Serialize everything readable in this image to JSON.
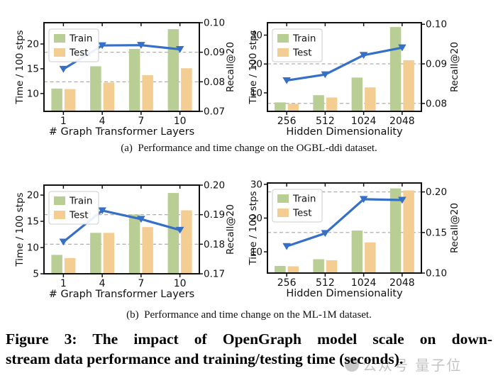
{
  "figure": {
    "subcaption_a": "(a)  Performance and time change on the OGBL-ddi dataset.",
    "subcaption_b": "(b)  Performance and time change on the ML-1M dataset.",
    "caption_lines": [
      "Figure 3: The impact of OpenGraph model scale on down-",
      "stream data performance and training/testing time (seconds)."
    ]
  },
  "legend": {
    "train_label": "Train",
    "test_label": "Test"
  },
  "colors": {
    "train_bar": "#b8ce94",
    "test_bar": "#f4cd92",
    "line": "#3570c6",
    "grid": "#a6a6a6",
    "spine": "#111111",
    "legend_border": "#cccccc"
  },
  "watermark": {
    "icon": "circle-logo",
    "text": "公众号 量子位"
  },
  "chart_data": [
    {
      "type": "bar",
      "title": "",
      "xlabel": "# Graph Transformer Layers",
      "ylabel_left": "Time / 100 stps",
      "ylabel_right": "Recall@20",
      "categories": [
        "1",
        "4",
        "7",
        "10"
      ],
      "series": [
        {
          "name": "Train",
          "type": "bar",
          "axis": "left",
          "values": [
            11,
            15.5,
            19,
            23
          ]
        },
        {
          "name": "Test",
          "type": "bar",
          "axis": "left",
          "values": [
            10.9,
            12.2,
            13.7,
            15.1
          ]
        },
        {
          "name": "Recall@20",
          "type": "line",
          "axis": "right",
          "values": [
            0.0843,
            0.0923,
            0.0924,
            0.091
          ]
        }
      ],
      "left_ticks": [
        10,
        15,
        20
      ],
      "left_range": [
        6.4,
        24.3
      ],
      "right_ticks": [
        0.07,
        0.08,
        0.09,
        0.1
      ],
      "right_tick_labels": [
        "0.07",
        "0.08",
        "0.09",
        "0.10"
      ],
      "right_range": [
        0.07,
        0.1
      ],
      "gridlines_right": [
        0.08,
        0.09
      ],
      "legend_position": "upper-left",
      "grid": "dashed-horizontal"
    },
    {
      "type": "bar",
      "title": "",
      "xlabel": "Hidden Dimensionality",
      "ylabel_left": "Time / 100 stps",
      "ylabel_right": "Recall@20",
      "categories": [
        "256",
        "512",
        "1024",
        "2048"
      ],
      "series": [
        {
          "name": "Train",
          "type": "bar",
          "axis": "left",
          "values": [
            6.7,
            9.2,
            15.3,
            32.8
          ]
        },
        {
          "name": "Test",
          "type": "bar",
          "axis": "left",
          "values": [
            6.2,
            8.4,
            11.9,
            21.3
          ]
        },
        {
          "name": "Recall@20",
          "type": "line",
          "axis": "right",
          "values": [
            0.0858,
            0.0873,
            0.0922,
            0.0941
          ]
        }
      ],
      "left_ticks": [
        10,
        20,
        30
      ],
      "left_range": [
        3.6,
        34.3
      ],
      "right_ticks": [
        0.08,
        0.09,
        0.1
      ],
      "right_tick_labels": [
        "0.08",
        "0.09",
        "0.10"
      ],
      "right_range": [
        0.078,
        0.1004
      ],
      "gridlines_right": [
        0.08,
        0.09
      ],
      "legend_position": "upper-left",
      "grid": "dashed-horizontal"
    },
    {
      "type": "bar",
      "title": "",
      "xlabel": "# Graph Transformer Layers",
      "ylabel_left": "Time / 100 stps",
      "ylabel_right": "Recall@20",
      "categories": [
        "1",
        "4",
        "7",
        "10"
      ],
      "series": [
        {
          "name": "Train",
          "type": "bar",
          "axis": "left",
          "values": [
            8.6,
            12.8,
            16.3,
            20.4
          ]
        },
        {
          "name": "Test",
          "type": "bar",
          "axis": "left",
          "values": [
            8.0,
            12.8,
            13.9,
            17.1
          ]
        },
        {
          "name": "Recall@20",
          "type": "line",
          "axis": "right",
          "values": [
            0.1808,
            0.1914,
            0.1885,
            0.1848
          ]
        }
      ],
      "left_ticks": [
        5,
        10,
        15,
        20
      ],
      "left_range": [
        5,
        21.9
      ],
      "right_ticks": [
        0.17,
        0.18,
        0.19,
        0.2
      ],
      "right_tick_labels": [
        "0.17",
        "0.18",
        "0.19",
        "0.20"
      ],
      "right_range": [
        0.17,
        0.2
      ],
      "gridlines_right": [
        0.18,
        0.19
      ],
      "legend_position": "upper-left",
      "grid": "dashed-horizontal"
    },
    {
      "type": "bar",
      "title": "",
      "xlabel": "Hidden Dimensionality",
      "ylabel_left": "Time / 100 stps",
      "ylabel_right": "Recall@20",
      "categories": [
        "256",
        "512",
        "1024",
        "2048"
      ],
      "series": [
        {
          "name": "Train",
          "type": "bar",
          "axis": "left",
          "values": [
            5.8,
            7.8,
            16.3,
            28.8
          ]
        },
        {
          "name": "Test",
          "type": "bar",
          "axis": "left",
          "values": [
            5.7,
            7.5,
            12.8,
            28.2
          ]
        },
        {
          "name": "Recall@20",
          "type": "line",
          "axis": "right",
          "values": [
            0.133,
            0.149,
            0.191,
            0.19
          ]
        }
      ],
      "left_ticks": [
        10,
        20,
        30
      ],
      "left_range": [
        3.7,
        30.4
      ],
      "right_ticks": [
        0.1,
        0.15,
        0.2
      ],
      "right_tick_labels": [
        "0.10",
        "0.15",
        "0.20"
      ],
      "right_range": [
        0.1,
        0.211
      ],
      "gridlines_right": [
        0.15,
        0.2
      ],
      "legend_position": "upper-left",
      "grid": "dashed-horizontal"
    }
  ]
}
